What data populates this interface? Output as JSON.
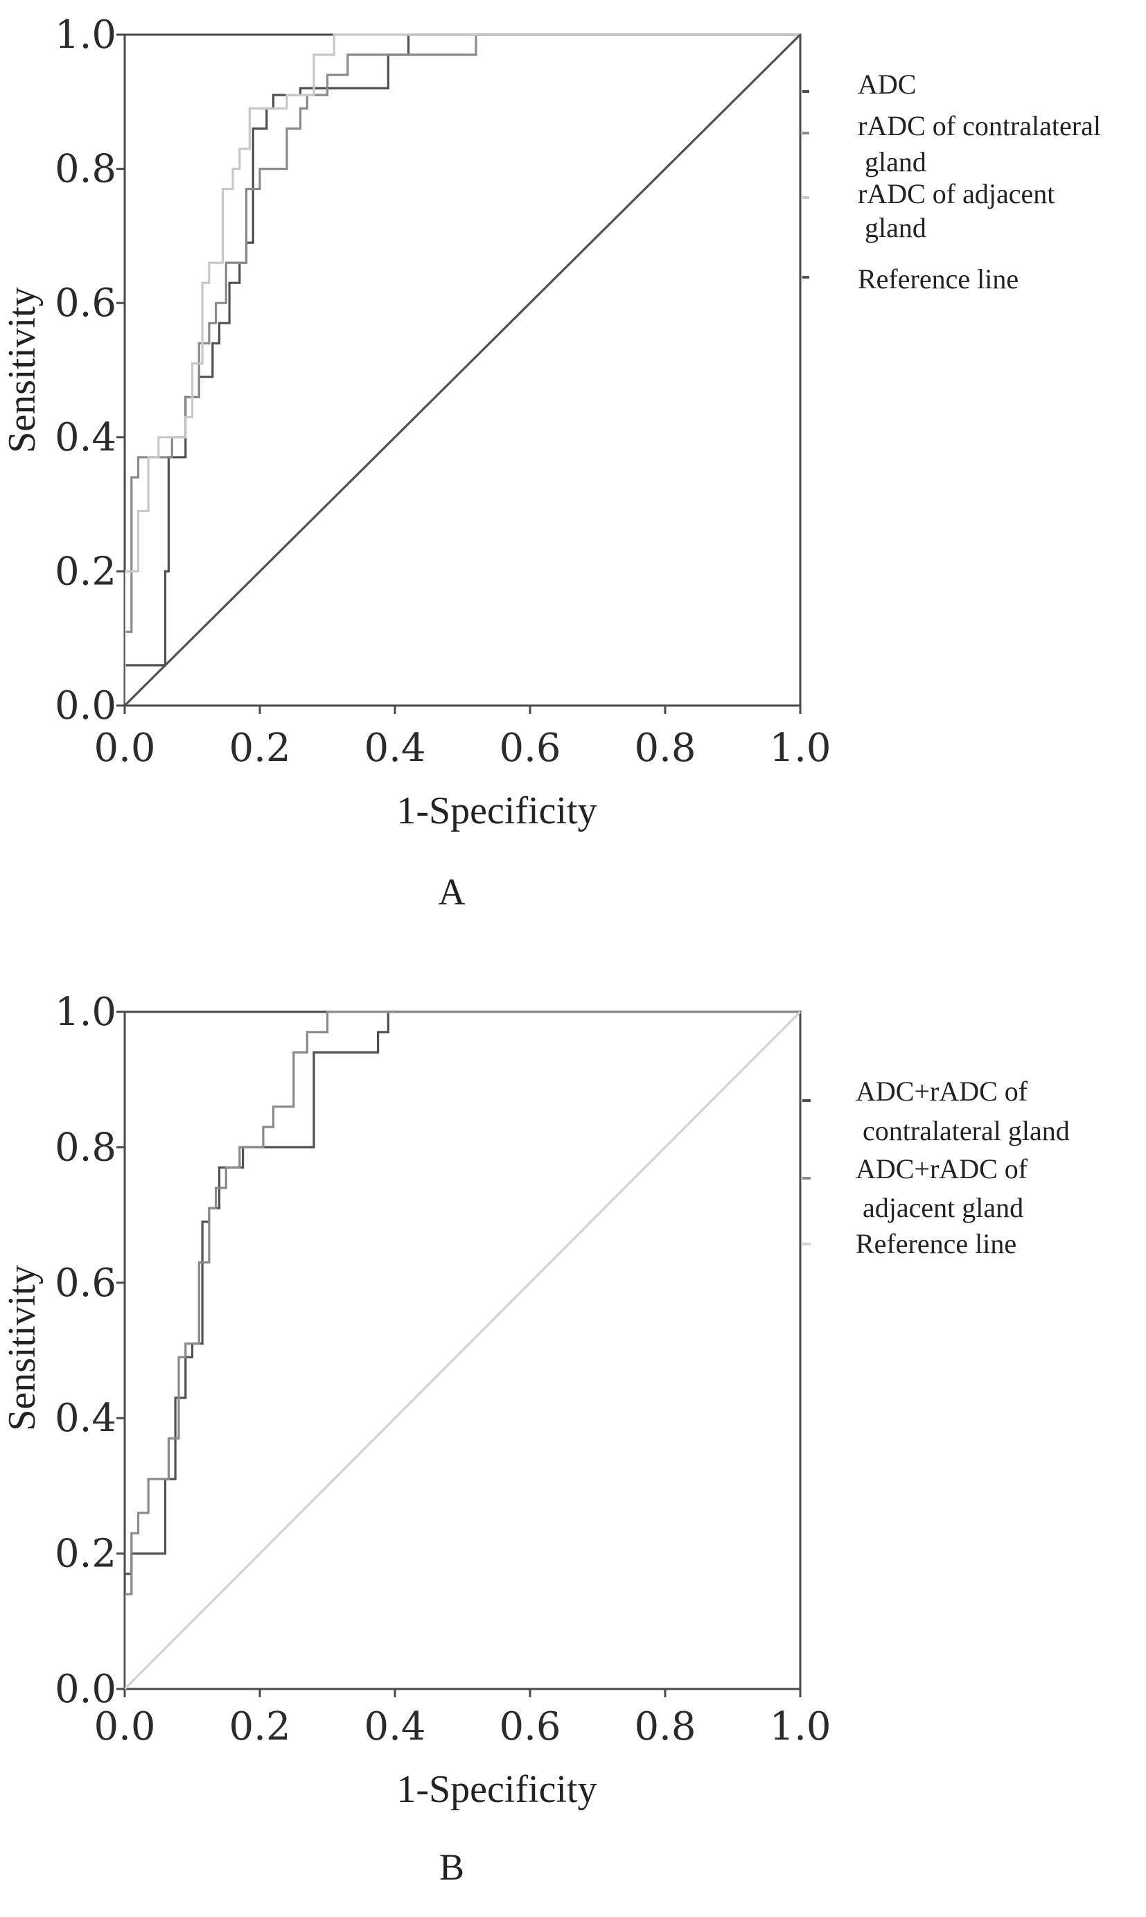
{
  "chart_data": [
    {
      "type": "line",
      "panel_label": "A",
      "xlabel": "1-Specificity",
      "ylabel": "Sensitivity",
      "xlim": [
        0,
        1
      ],
      "ylim": [
        0,
        1
      ],
      "x_ticks": [
        "0.0",
        "0.2",
        "0.4",
        "0.6",
        "0.8",
        "1.0"
      ],
      "y_ticks": [
        "0.0",
        "0.2",
        "0.4",
        "0.6",
        "0.8",
        "1.0"
      ],
      "grid": false,
      "legend_position": "right",
      "series": [
        {
          "name": "ADC",
          "color": "#505050",
          "x": [
            0,
            0,
            0.06,
            0.06,
            0.065,
            0.065,
            0.09,
            0.09,
            0.11,
            0.11,
            0.13,
            0.13,
            0.14,
            0.14,
            0.155,
            0.155,
            0.17,
            0.17,
            0.18,
            0.18,
            0.19,
            0.19,
            0.21,
            0.21,
            0.22,
            0.22,
            0.26,
            0.26,
            0.3,
            0.3,
            0.39,
            0.39,
            0.42,
            0.42,
            1.0
          ],
          "y": [
            0,
            0.06,
            0.06,
            0.2,
            0.2,
            0.37,
            0.37,
            0.46,
            0.46,
            0.49,
            0.49,
            0.54,
            0.54,
            0.57,
            0.57,
            0.63,
            0.63,
            0.66,
            0.66,
            0.69,
            0.69,
            0.86,
            0.86,
            0.89,
            0.89,
            0.91,
            0.91,
            0.92,
            0.92,
            0.92,
            0.92,
            0.97,
            0.97,
            1.0,
            1.0
          ]
        },
        {
          "name": "rADC of contralateral gland",
          "color": "#8a8a8a",
          "x": [
            0,
            0,
            0.01,
            0.01,
            0.02,
            0.02,
            0.03,
            0.03,
            0.04,
            0.04,
            0.07,
            0.07,
            0.09,
            0.09,
            0.11,
            0.11,
            0.125,
            0.125,
            0.135,
            0.135,
            0.15,
            0.15,
            0.18,
            0.18,
            0.2,
            0.2,
            0.24,
            0.24,
            0.26,
            0.26,
            0.27,
            0.27,
            0.3,
            0.3,
            0.33,
            0.33,
            0.36,
            0.36,
            0.52,
            0.52,
            1.0
          ],
          "y": [
            0,
            0.11,
            0.11,
            0.34,
            0.34,
            0.37,
            0.37,
            0.37,
            0.37,
            0.37,
            0.37,
            0.4,
            0.4,
            0.46,
            0.46,
            0.54,
            0.54,
            0.57,
            0.57,
            0.6,
            0.6,
            0.66,
            0.66,
            0.77,
            0.77,
            0.8,
            0.8,
            0.86,
            0.86,
            0.89,
            0.89,
            0.91,
            0.91,
            0.94,
            0.94,
            0.97,
            0.97,
            0.97,
            0.97,
            1.0,
            1.0
          ]
        },
        {
          "name": "rADC of adjacent gland",
          "color": "#c8c8c8",
          "x": [
            0,
            0,
            0.02,
            0.02,
            0.035,
            0.035,
            0.05,
            0.05,
            0.09,
            0.09,
            0.1,
            0.1,
            0.115,
            0.115,
            0.125,
            0.125,
            0.145,
            0.145,
            0.16,
            0.16,
            0.17,
            0.17,
            0.185,
            0.185,
            0.2,
            0.2,
            0.24,
            0.24,
            0.28,
            0.28,
            0.31,
            0.31,
            0.34,
            0.34,
            1.0
          ],
          "y": [
            0,
            0.2,
            0.2,
            0.29,
            0.29,
            0.37,
            0.37,
            0.4,
            0.4,
            0.43,
            0.43,
            0.51,
            0.51,
            0.63,
            0.63,
            0.66,
            0.66,
            0.77,
            0.77,
            0.8,
            0.8,
            0.83,
            0.83,
            0.89,
            0.89,
            0.89,
            0.89,
            0.91,
            0.91,
            0.97,
            0.97,
            1.0,
            1.0,
            1.0,
            1.0
          ]
        },
        {
          "name": "Reference line",
          "color": "#505050",
          "x": [
            0,
            1
          ],
          "y": [
            0,
            1
          ]
        }
      ],
      "legend_lines": [
        [
          "ADC"
        ],
        [
          "rADC of contralateral",
          " gland"
        ],
        [
          "rADC of adjacent",
          " gland"
        ],
        [
          "Reference line"
        ]
      ]
    },
    {
      "type": "line",
      "panel_label": "B",
      "xlabel": "1-Specificity",
      "ylabel": "Sensitivity",
      "xlim": [
        0,
        1
      ],
      "ylim": [
        0,
        1
      ],
      "x_ticks": [
        "0.0",
        "0.2",
        "0.4",
        "0.6",
        "0.8",
        "1.0"
      ],
      "y_ticks": [
        "0.0",
        "0.2",
        "0.4",
        "0.6",
        "0.8",
        "1.0"
      ],
      "grid": false,
      "legend_position": "right",
      "series": [
        {
          "name": "ADC+rADC of contralateral gland",
          "color": "#505050",
          "x": [
            0,
            0,
            0.01,
            0.01,
            0.06,
            0.06,
            0.075,
            0.075,
            0.09,
            0.09,
            0.1,
            0.1,
            0.115,
            0.115,
            0.125,
            0.125,
            0.14,
            0.14,
            0.155,
            0.155,
            0.175,
            0.175,
            0.28,
            0.28,
            0.375,
            0.375,
            0.39,
            0.39,
            1.0
          ],
          "y": [
            0,
            0.17,
            0.17,
            0.2,
            0.2,
            0.31,
            0.31,
            0.43,
            0.43,
            0.49,
            0.49,
            0.51,
            0.51,
            0.69,
            0.69,
            0.71,
            0.71,
            0.77,
            0.77,
            0.77,
            0.77,
            0.8,
            0.8,
            0.94,
            0.94,
            0.97,
            0.97,
            1.0,
            1.0
          ]
        },
        {
          "name": "ADC+rADC of adjacent gland",
          "color": "#8a8a8a",
          "x": [
            0,
            0,
            0.01,
            0.01,
            0.02,
            0.02,
            0.035,
            0.035,
            0.05,
            0.05,
            0.065,
            0.065,
            0.08,
            0.08,
            0.09,
            0.09,
            0.11,
            0.11,
            0.125,
            0.125,
            0.135,
            0.135,
            0.15,
            0.15,
            0.17,
            0.17,
            0.205,
            0.205,
            0.22,
            0.22,
            0.25,
            0.25,
            0.27,
            0.27,
            0.3,
            0.3,
            1.0
          ],
          "y": [
            0,
            0.14,
            0.14,
            0.23,
            0.23,
            0.26,
            0.26,
            0.31,
            0.31,
            0.31,
            0.31,
            0.37,
            0.37,
            0.49,
            0.49,
            0.51,
            0.51,
            0.63,
            0.63,
            0.71,
            0.71,
            0.74,
            0.74,
            0.77,
            0.77,
            0.8,
            0.8,
            0.83,
            0.83,
            0.86,
            0.86,
            0.94,
            0.94,
            0.97,
            0.97,
            1.0,
            1.0
          ]
        },
        {
          "name": "Reference line",
          "color": "#d2d2d2",
          "x": [
            0,
            1
          ],
          "y": [
            0,
            1
          ]
        }
      ],
      "legend_lines": [
        [
          "ADC+rADC of",
          " contralateral gland"
        ],
        [
          "ADC+rADC of",
          " adjacent gland"
        ],
        [
          "Reference line"
        ]
      ]
    }
  ]
}
